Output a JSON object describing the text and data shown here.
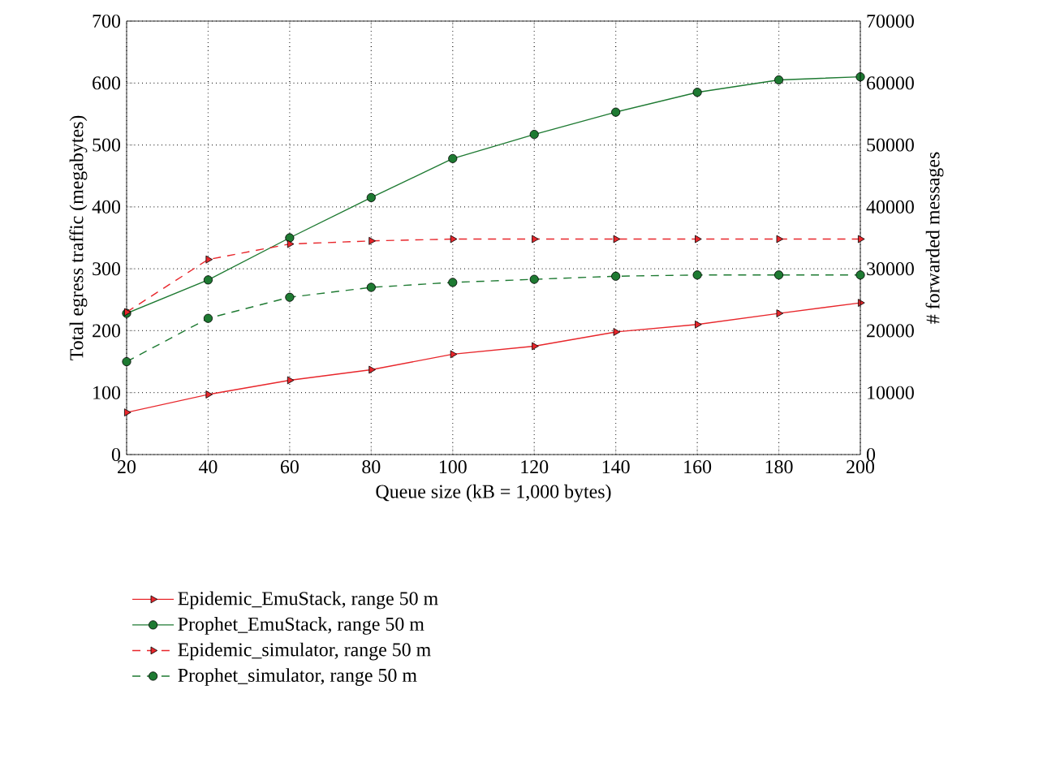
{
  "chart_data": {
    "type": "line",
    "xlabel": "Queue size (kB = 1,000 bytes)",
    "ylabel": "Total egress traffic (megabytes)",
    "y2label": "# forwarded messages",
    "x": [
      20,
      40,
      60,
      80,
      100,
      120,
      140,
      160,
      180,
      200
    ],
    "xlim": [
      20,
      200
    ],
    "xticks": [
      20,
      40,
      60,
      80,
      100,
      120,
      140,
      160,
      180,
      200
    ],
    "ylim": [
      0,
      700
    ],
    "yticks": [
      0,
      100,
      200,
      300,
      400,
      500,
      600,
      700
    ],
    "y2lim": [
      0,
      70000
    ],
    "y2ticks": [
      0,
      10000,
      20000,
      30000,
      40000,
      50000,
      60000,
      70000
    ],
    "grid": true,
    "legend": "bottom",
    "series": [
      {
        "name": "Epidemic_EmuStack, range 50 m",
        "color": "#e8262b",
        "marker": "triangle",
        "line_style": "solid",
        "values": [
          68,
          97,
          120,
          137,
          162,
          175,
          198,
          210,
          228,
          245
        ]
      },
      {
        "name": "Prophet_EmuStack, range 50 m",
        "color": "#1e7a32",
        "marker": "circle",
        "line_style": "solid",
        "values": [
          228,
          282,
          350,
          415,
          478,
          517,
          553,
          585,
          605,
          610
        ]
      },
      {
        "name": "Epidemic_simulator, range 50 m",
        "color": "#e8262b",
        "marker": "triangle",
        "line_style": "dashed",
        "axis": "y2",
        "values": [
          23000,
          31500,
          34000,
          34500,
          34800,
          34800,
          34800,
          34800,
          34800,
          34800
        ]
      },
      {
        "name": "Prophet_simulator, range 50 m",
        "color": "#1e7a32",
        "marker": "circle",
        "line_style": "dashed",
        "axis": "y2",
        "values": [
          15000,
          22000,
          25400,
          27000,
          27800,
          28300,
          28800,
          29000,
          29000,
          29000
        ]
      }
    ]
  }
}
